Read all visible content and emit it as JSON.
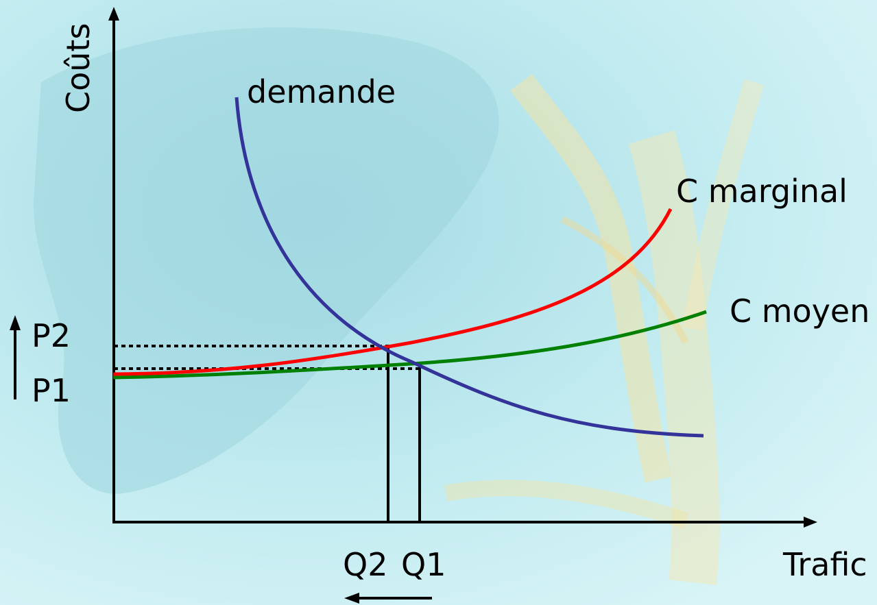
{
  "axes": {
    "y_label": "Coûts",
    "x_label": "Trafic"
  },
  "curves": {
    "demande": {
      "label": "demande",
      "color": "#333399"
    },
    "marginal": {
      "label": "C marginal",
      "color": "#ff0000"
    },
    "moyen": {
      "label": "C moyen",
      "color": "#008000"
    }
  },
  "prices": {
    "p2": "P2",
    "p1": "P1"
  },
  "quantities": {
    "q2": "Q2",
    "q1": "Q1"
  },
  "arrows": {
    "price_direction": "up",
    "quantity_direction": "left"
  },
  "background": {
    "description_colors": [
      "#bfeaf0",
      "#a9dde6",
      "#f3e7b0"
    ]
  }
}
